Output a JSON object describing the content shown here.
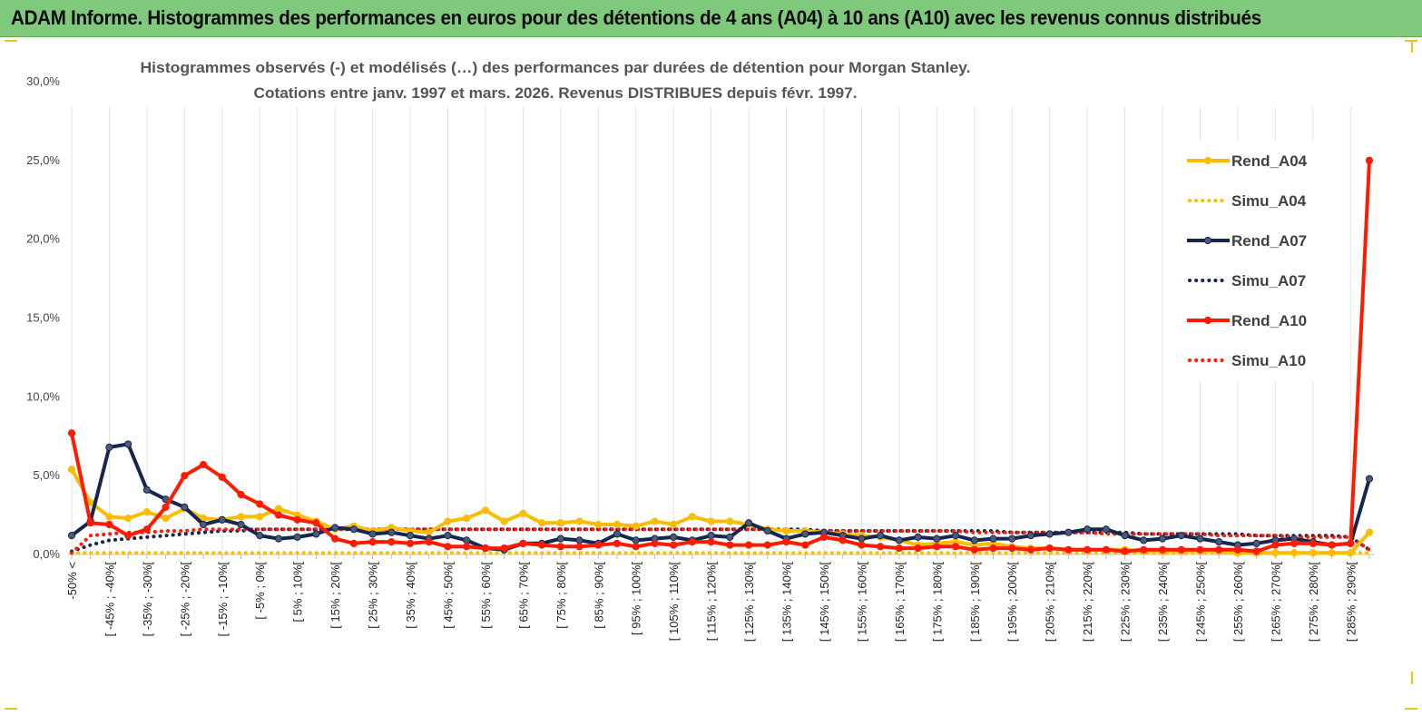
{
  "header": {
    "title": "ADAM Informe. Histogrammes des performances en euros pour des détentions de 4 ans (A04) à 10 ans (A10) avec les revenus connus distribués"
  },
  "chart_data": {
    "type": "line",
    "title_line1": "Histogrammes observés (-) et modélisés (…) des performances par durées de détention pour Morgan Stanley.",
    "title_line2": "Cotations entre janv. 1997 et mars. 2026. Revenus DISTRIBUES depuis févr. 1997.",
    "ylim": [
      0,
      30
    ],
    "yticks": [
      "0,0%",
      "5,0%",
      "10,0%",
      "15,0%",
      "20,0%",
      "25,0%",
      "30,0%"
    ],
    "ytick_values": [
      0,
      5,
      10,
      15,
      20,
      25,
      30
    ],
    "x_labels": [
      "-50% <",
      "[ -45% ; -40%[",
      "[ -35% ; -30%[",
      "[ -25% ; -20%[",
      "[ -15% ; -10%[",
      "[ -5% ; 0%[",
      "[ 5% ; 10%[",
      "[ 15% ; 20%[",
      "[ 25% ; 30%[",
      "[ 35% ; 40%[",
      "[ 45% ; 50%[",
      "[ 55% ; 60%[",
      "[ 65% ; 70%[",
      "[ 75% ; 80%[",
      "[ 85% ; 90%[",
      "[ 95% ; 100%[",
      "[ 105% ; 110%[",
      "[ 115% ; 120%[",
      "[ 125% ; 130%[",
      "[ 135% ; 140%[",
      "[ 145% ; 150%[",
      "[ 155% ; 160%[",
      "[ 165% ; 170%[",
      "[ 175% ; 180%[",
      "[ 185% ; 190%[",
      "[ 195% ; 200%[",
      "[ 205% ; 210%[",
      "[ 215% ; 220%[",
      "[ 225% ; 230%[",
      "[ 235% ; 240%[",
      "[ 245% ; 250%[",
      "[ 255% ; 260%[",
      "[ 265% ; 270%[",
      "[ 275% ; 280%[",
      "[ 285% ; 290%["
    ],
    "n_points": 70,
    "series": [
      {
        "name": "Rend_A04",
        "color": "#fbbc04",
        "style": "solid",
        "markers": true,
        "values": [
          5.4,
          3.3,
          2.4,
          2.3,
          2.7,
          2.3,
          2.9,
          2.3,
          2.2,
          2.4,
          2.4,
          2.9,
          2.5,
          2.1,
          1.6,
          1.8,
          1.5,
          1.7,
          1.5,
          1.4,
          2.1,
          2.3,
          2.8,
          2.1,
          2.6,
          2.0,
          2.0,
          2.1,
          1.9,
          1.9,
          1.8,
          2.1,
          1.9,
          2.4,
          2.1,
          2.1,
          1.9,
          1.6,
          1.5,
          1.5,
          1.4,
          1.3,
          1.2,
          1.1,
          0.9,
          0.6,
          0.7,
          0.8,
          0.6,
          0.7,
          0.5,
          0.4,
          0.4,
          0.3,
          0.3,
          0.3,
          0.3,
          0.2,
          0.2,
          0.2,
          0.2,
          0.2,
          0.1,
          0.1,
          0.1,
          0.1,
          0.1,
          0.1,
          0.1,
          1.4
        ]
      },
      {
        "name": "Simu_A04",
        "color": "#fbbc04",
        "style": "dotted",
        "markers": false,
        "values": [
          0.1,
          0.1,
          0.1,
          0.1,
          0.1,
          0.1,
          0.1,
          0.1,
          0.1,
          0.1,
          0.1,
          0.1,
          0.1,
          0.1,
          0.1,
          0.1,
          0.1,
          0.1,
          0.1,
          0.1,
          0.1,
          0.1,
          0.1,
          0.1,
          0.1,
          0.1,
          0.1,
          0.1,
          0.1,
          0.1,
          0.1,
          0.1,
          0.1,
          0.1,
          0.1,
          0.1,
          0.1,
          0.1,
          0.1,
          0.1,
          0.1,
          0.1,
          0.1,
          0.1,
          0.1,
          0.1,
          0.1,
          0.1,
          0.1,
          0.1,
          0.1,
          0.1,
          0.1,
          0.1,
          0.1,
          0.1,
          0.1,
          0.1,
          0.1,
          0.1,
          0.1,
          0.1,
          0.1,
          0.1,
          0.1,
          0.1,
          0.1,
          0.1,
          0.1,
          0.1
        ]
      },
      {
        "name": "Rend_A07",
        "color": "#15264f",
        "style": "solid",
        "markers": true,
        "values": [
          1.2,
          2.1,
          6.8,
          7.0,
          4.1,
          3.5,
          3.0,
          1.9,
          2.2,
          1.9,
          1.2,
          1.0,
          1.1,
          1.3,
          1.7,
          1.6,
          1.3,
          1.4,
          1.2,
          1.0,
          1.2,
          0.9,
          0.4,
          0.3,
          0.7,
          0.7,
          1.0,
          0.9,
          0.7,
          1.3,
          0.9,
          1.0,
          1.1,
          0.9,
          1.2,
          1.1,
          2.0,
          1.5,
          1.0,
          1.3,
          1.4,
          1.2,
          1.0,
          1.2,
          0.9,
          1.1,
          1.0,
          1.2,
          0.9,
          1.0,
          1.0,
          1.2,
          1.3,
          1.4,
          1.6,
          1.6,
          1.2,
          0.9,
          1.0,
          1.2,
          1.0,
          0.8,
          0.6,
          0.7,
          0.9,
          1.0,
          0.8,
          0.6,
          0.7,
          4.8
        ]
      },
      {
        "name": "Simu_A07",
        "color": "#15264f",
        "style": "dotted",
        "markers": false,
        "values": [
          0.2,
          0.6,
          0.9,
          1.0,
          1.1,
          1.2,
          1.3,
          1.4,
          1.5,
          1.5,
          1.6,
          1.6,
          1.6,
          1.6,
          1.6,
          1.6,
          1.6,
          1.6,
          1.6,
          1.6,
          1.6,
          1.6,
          1.6,
          1.6,
          1.6,
          1.6,
          1.6,
          1.6,
          1.6,
          1.6,
          1.6,
          1.6,
          1.6,
          1.6,
          1.6,
          1.6,
          1.6,
          1.6,
          1.6,
          1.6,
          1.5,
          1.5,
          1.5,
          1.5,
          1.5,
          1.5,
          1.5,
          1.5,
          1.5,
          1.5,
          1.4,
          1.4,
          1.4,
          1.4,
          1.4,
          1.4,
          1.4,
          1.3,
          1.3,
          1.3,
          1.3,
          1.3,
          1.3,
          1.2,
          1.2,
          1.2,
          1.2,
          1.2,
          1.1,
          0.3
        ]
      },
      {
        "name": "Rend_A10",
        "color": "#ff1a00",
        "style": "solid",
        "markers": true,
        "values": [
          7.7,
          2.0,
          1.9,
          1.2,
          1.6,
          3.0,
          5.0,
          5.7,
          4.9,
          3.8,
          3.2,
          2.5,
          2.2,
          2.0,
          1.0,
          0.7,
          0.8,
          0.8,
          0.7,
          0.8,
          0.5,
          0.5,
          0.4,
          0.4,
          0.7,
          0.6,
          0.5,
          0.5,
          0.6,
          0.7,
          0.5,
          0.7,
          0.6,
          0.8,
          0.8,
          0.6,
          0.6,
          0.6,
          0.8,
          0.6,
          1.1,
          0.9,
          0.6,
          0.5,
          0.4,
          0.4,
          0.5,
          0.5,
          0.3,
          0.4,
          0.4,
          0.3,
          0.4,
          0.3,
          0.3,
          0.3,
          0.2,
          0.3,
          0.3,
          0.3,
          0.3,
          0.3,
          0.3,
          0.2,
          0.6,
          0.7,
          0.7,
          0.6,
          0.7,
          25.0
        ]
      },
      {
        "name": "Simu_A10",
        "color": "#ff1a00",
        "style": "dotted",
        "markers": false,
        "values": [
          0.1,
          1.2,
          1.3,
          1.4,
          1.4,
          1.5,
          1.5,
          1.6,
          1.6,
          1.6,
          1.6,
          1.6,
          1.6,
          1.6,
          1.6,
          1.6,
          1.6,
          1.6,
          1.6,
          1.6,
          1.6,
          1.6,
          1.6,
          1.6,
          1.6,
          1.6,
          1.6,
          1.6,
          1.6,
          1.6,
          1.6,
          1.6,
          1.6,
          1.6,
          1.6,
          1.6,
          1.6,
          1.6,
          1.5,
          1.5,
          1.5,
          1.5,
          1.5,
          1.5,
          1.5,
          1.5,
          1.5,
          1.5,
          1.4,
          1.4,
          1.4,
          1.4,
          1.4,
          1.4,
          1.4,
          1.3,
          1.3,
          1.3,
          1.3,
          1.3,
          1.3,
          1.2,
          1.2,
          1.2,
          1.2,
          1.1,
          1.1,
          1.1,
          1.1,
          0.3
        ]
      }
    ],
    "legend": {
      "position": "right",
      "items": [
        "Rend_A04",
        "Simu_A04",
        "Rend_A07",
        "Simu_A07",
        "Rend_A10",
        "Simu_A10"
      ]
    },
    "grid": {
      "vertical": true,
      "horizontal": false
    }
  }
}
